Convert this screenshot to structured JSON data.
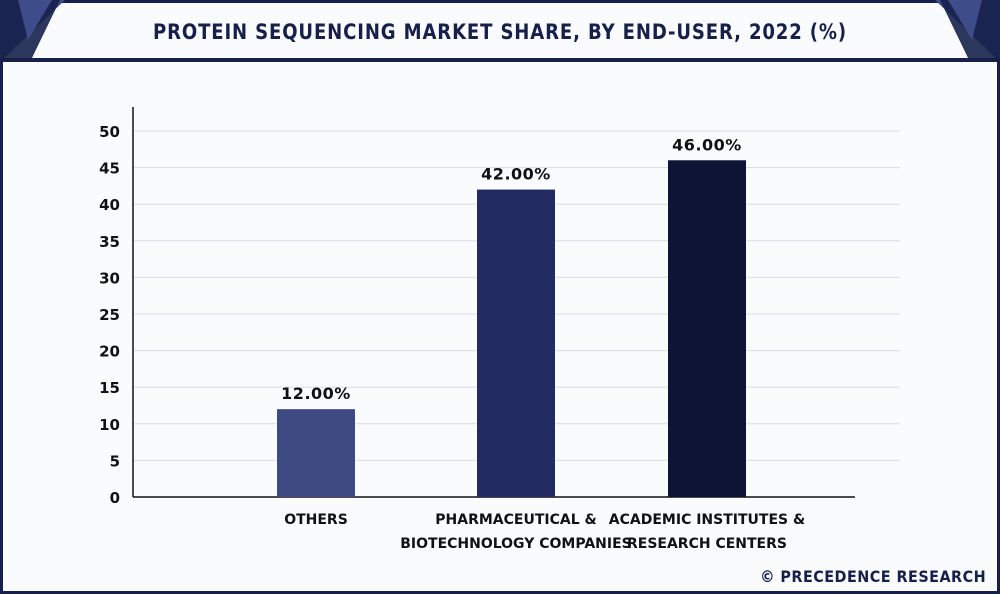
{
  "title": "PROTEIN SEQUENCING MARKET SHARE, BY END-USER, 2022 (%)",
  "source": "© PRECEDENCE RESEARCH",
  "colors": {
    "frame": "#16204a",
    "header_corner": "#3f4c8a",
    "grid": "#d9dce6",
    "axis": "#111111"
  },
  "chart_data": {
    "type": "bar",
    "categories": [
      [
        "OTHERS"
      ],
      [
        "PHARMACEUTICAL &",
        "BIOTECHNOLOGY COMPANIES"
      ],
      [
        "ACADEMIC INSTITUTES &",
        "RESEARCH CENTERS"
      ]
    ],
    "values": [
      12,
      42,
      46
    ],
    "data_labels": [
      "12.00%",
      "42.00%",
      "46.00%"
    ],
    "bar_colors": [
      "#3f4a82",
      "#222b62",
      "#0d1436"
    ],
    "ylim": [
      0,
      50
    ],
    "yticks": [
      0,
      5,
      10,
      15,
      20,
      25,
      30,
      35,
      40,
      45,
      50
    ],
    "grid": true,
    "xlabel": "",
    "ylabel": ""
  }
}
